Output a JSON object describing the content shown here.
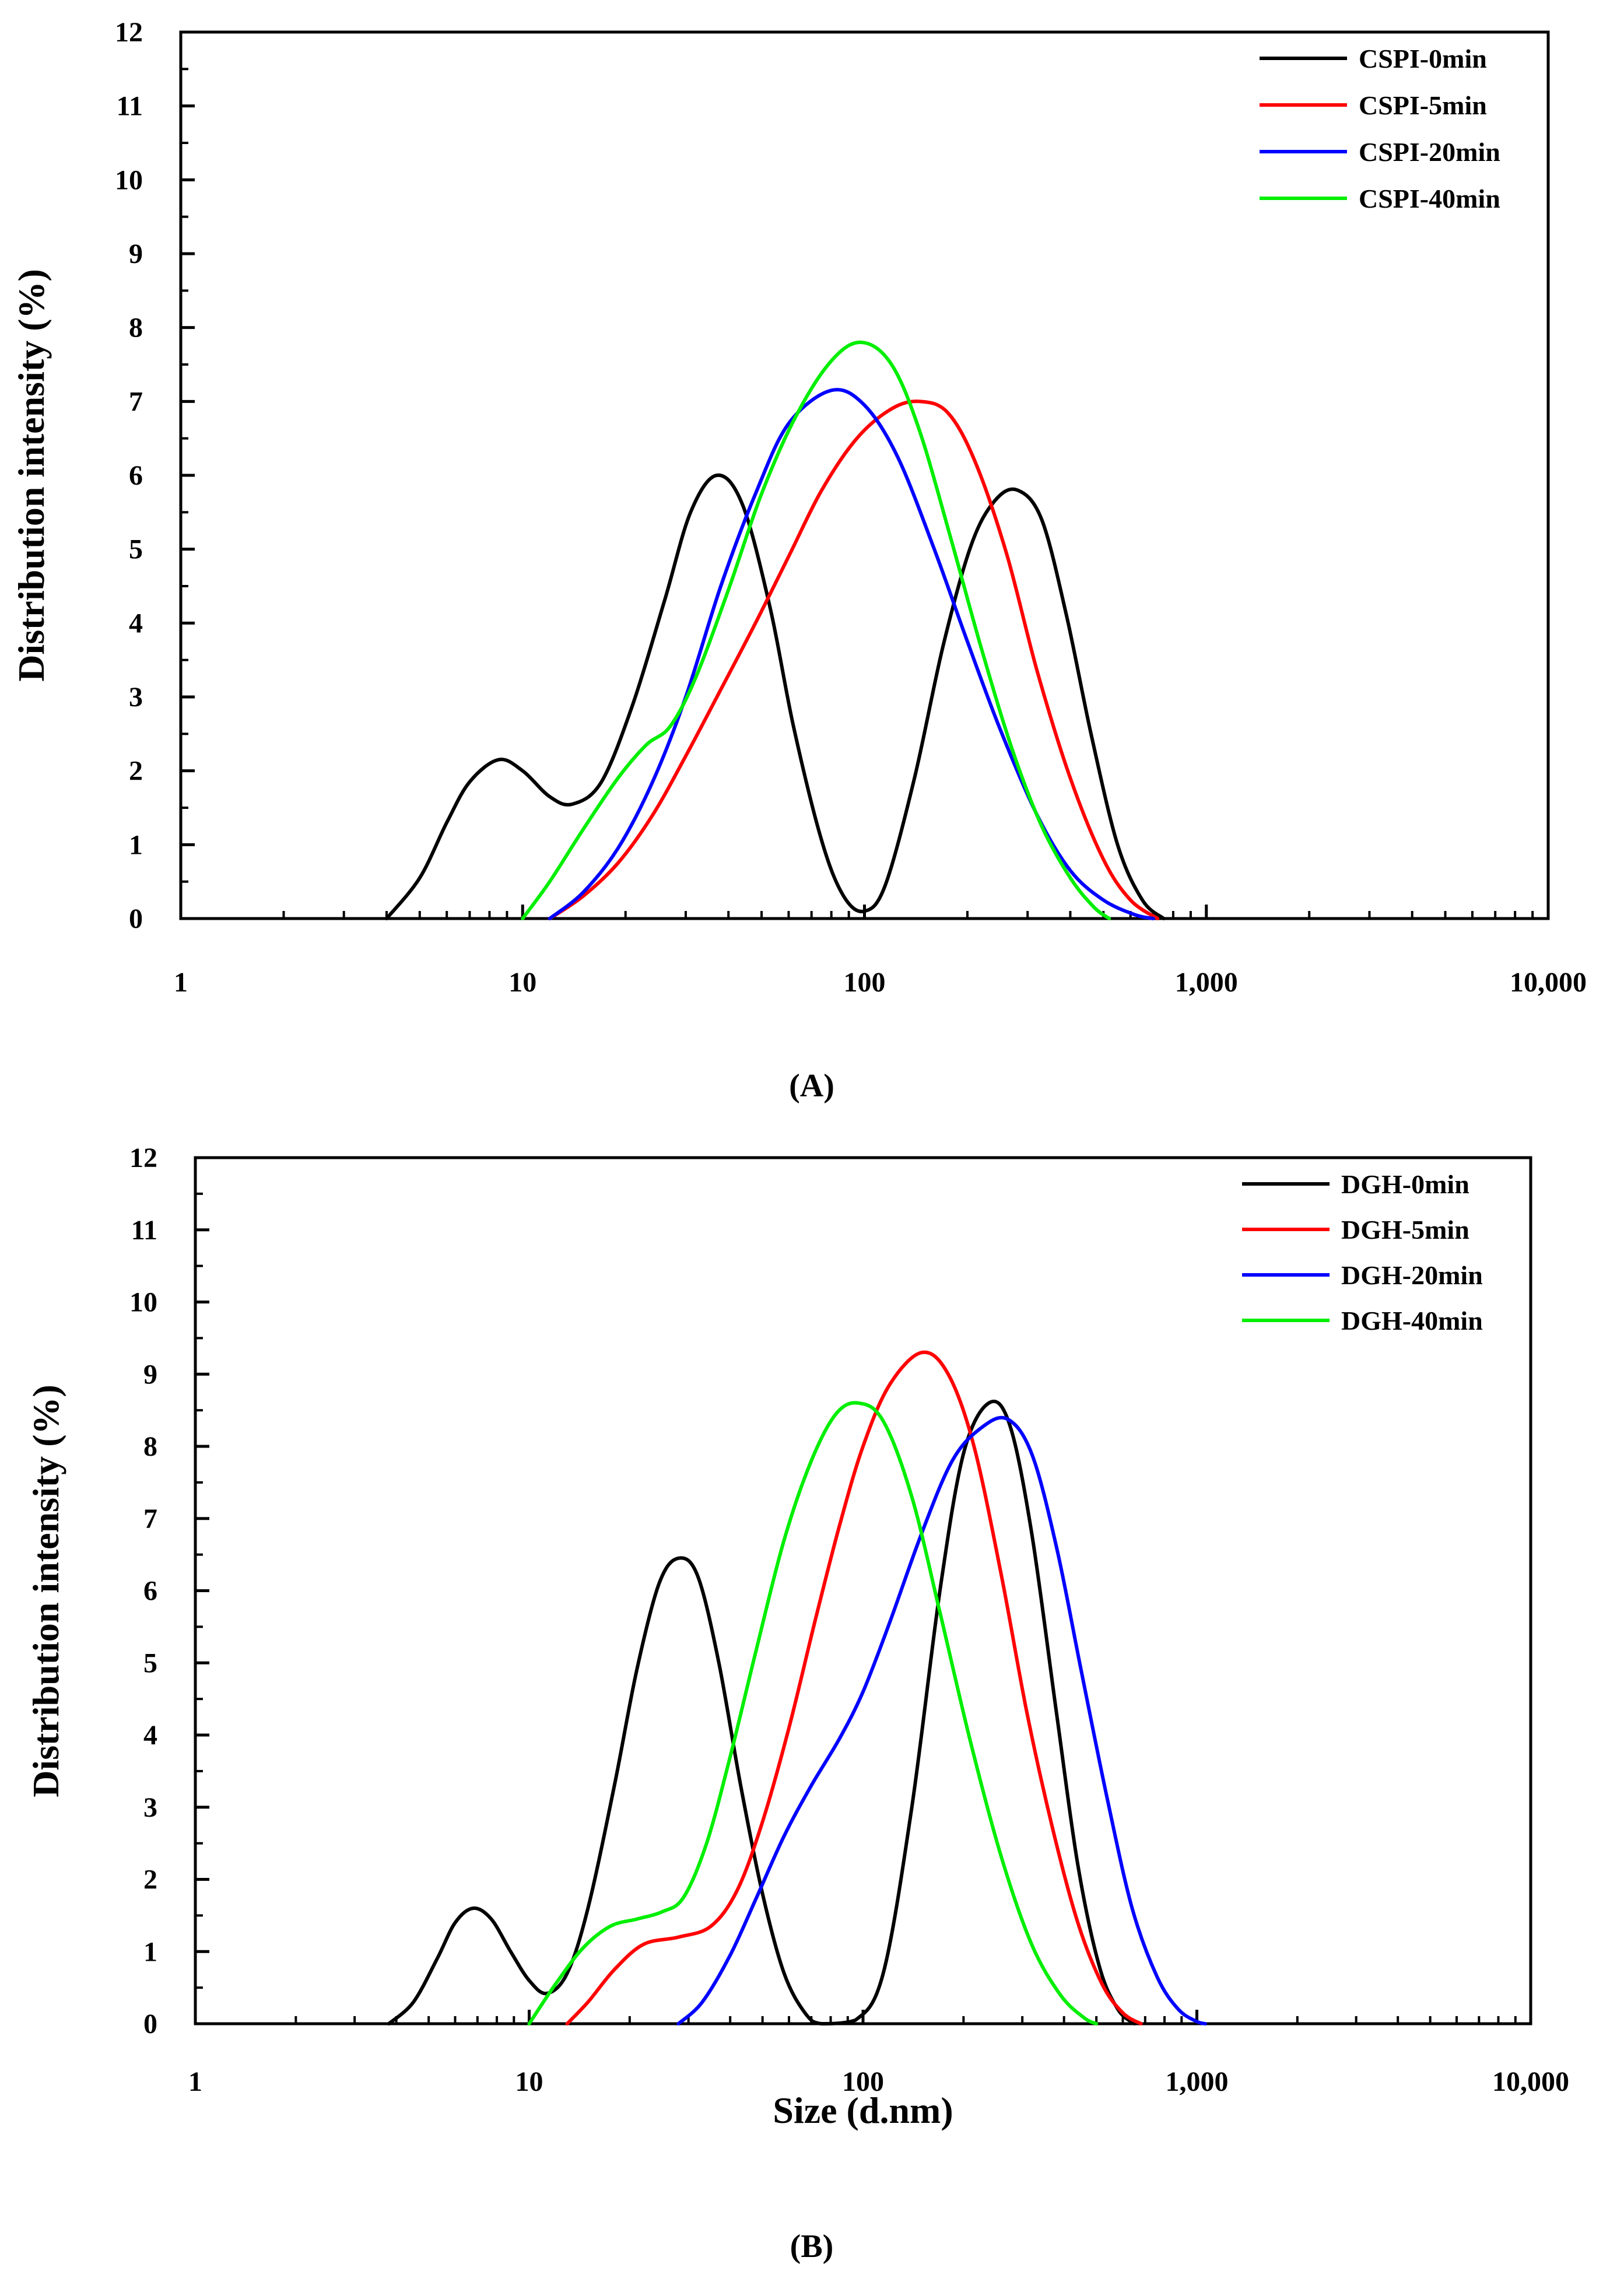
{
  "figure": {
    "panels": [
      {
        "label": "(A)",
        "legend_position": "top-right"
      },
      {
        "label": "(B)",
        "legend_position": "top-right"
      }
    ]
  },
  "chart_data": [
    {
      "type": "line",
      "panel": "A",
      "title": "",
      "xlabel": "",
      "ylabel": "Distribution intensity (%)",
      "xscale": "log",
      "xlim": [
        1,
        10000
      ],
      "ylim": [
        0,
        12
      ],
      "xticks": [
        1,
        10,
        100,
        1000,
        10000
      ],
      "xtick_labels": [
        "1",
        "10",
        "100",
        "1,000",
        "10,000"
      ],
      "yticks": [
        0,
        1,
        2,
        3,
        4,
        5,
        6,
        7,
        8,
        9,
        10,
        11,
        12
      ],
      "ytick_labels": [
        "0",
        "1",
        "2",
        "3",
        "4",
        "5",
        "6",
        "7",
        "8",
        "9",
        "10",
        "11",
        "12"
      ],
      "series": [
        {
          "name": "CSPI-0min",
          "color": "#000000",
          "points": [
            [
              4,
              0
            ],
            [
              5,
              0.55
            ],
            [
              6,
              1.3
            ],
            [
              7,
              1.85
            ],
            [
              8.5,
              2.15
            ],
            [
              10,
              2.0
            ],
            [
              12,
              1.65
            ],
            [
              14,
              1.55
            ],
            [
              17,
              1.85
            ],
            [
              21,
              2.9
            ],
            [
              26,
              4.3
            ],
            [
              31,
              5.5
            ],
            [
              37,
              6.0
            ],
            [
              44,
              5.6
            ],
            [
              53,
              4.2
            ],
            [
              62,
              2.6
            ],
            [
              75,
              1.05
            ],
            [
              87,
              0.3
            ],
            [
              100,
              0.1
            ],
            [
              115,
              0.45
            ],
            [
              140,
              1.9
            ],
            [
              170,
              3.7
            ],
            [
              205,
              5.05
            ],
            [
              240,
              5.65
            ],
            [
              280,
              5.8
            ],
            [
              330,
              5.4
            ],
            [
              390,
              4.1
            ],
            [
              460,
              2.5
            ],
            [
              550,
              1.0
            ],
            [
              650,
              0.25
            ],
            [
              750,
              0
            ]
          ]
        },
        {
          "name": "CSPI-5min",
          "color": "#ff0000",
          "points": [
            [
              12,
              0
            ],
            [
              15,
              0.3
            ],
            [
              19,
              0.75
            ],
            [
              24,
              1.4
            ],
            [
              30,
              2.2
            ],
            [
              38,
              3.1
            ],
            [
              48,
              4.0
            ],
            [
              60,
              4.9
            ],
            [
              75,
              5.8
            ],
            [
              95,
              6.5
            ],
            [
              120,
              6.9
            ],
            [
              145,
              7.0
            ],
            [
              175,
              6.85
            ],
            [
              210,
              6.2
            ],
            [
              260,
              4.95
            ],
            [
              320,
              3.35
            ],
            [
              400,
              1.9
            ],
            [
              500,
              0.8
            ],
            [
              600,
              0.25
            ],
            [
              720,
              0
            ]
          ]
        },
        {
          "name": "CSPI-20min",
          "color": "#0000ff",
          "points": [
            [
              12,
              0
            ],
            [
              15,
              0.35
            ],
            [
              19,
              0.95
            ],
            [
              24,
              1.85
            ],
            [
              30,
              3.0
            ],
            [
              38,
              4.5
            ],
            [
              48,
              5.75
            ],
            [
              60,
              6.7
            ],
            [
              80,
              7.15
            ],
            [
              100,
              6.95
            ],
            [
              125,
              6.25
            ],
            [
              160,
              5.0
            ],
            [
              200,
              3.75
            ],
            [
              250,
              2.55
            ],
            [
              320,
              1.4
            ],
            [
              400,
              0.65
            ],
            [
              500,
              0.25
            ],
            [
              620,
              0.05
            ],
            [
              700,
              0
            ]
          ]
        },
        {
          "name": "CSPI-40min",
          "color": "#00ee00",
          "points": [
            [
              10,
              0
            ],
            [
              12,
              0.5
            ],
            [
              15,
              1.2
            ],
            [
              19,
              1.9
            ],
            [
              23,
              2.35
            ],
            [
              27,
              2.6
            ],
            [
              32,
              3.25
            ],
            [
              40,
              4.45
            ],
            [
              50,
              5.75
            ],
            [
              63,
              6.8
            ],
            [
              80,
              7.55
            ],
            [
              98,
              7.8
            ],
            [
              120,
              7.5
            ],
            [
              145,
              6.6
            ],
            [
              180,
              5.1
            ],
            [
              220,
              3.65
            ],
            [
              270,
              2.3
            ],
            [
              330,
              1.25
            ],
            [
              400,
              0.55
            ],
            [
              470,
              0.15
            ],
            [
              520,
              0
            ]
          ]
        }
      ]
    },
    {
      "type": "line",
      "panel": "B",
      "title": "",
      "xlabel": "Size (d.nm)",
      "ylabel": "Distribution intensity (%)",
      "xscale": "log",
      "xlim": [
        1,
        10000
      ],
      "ylim": [
        0,
        12
      ],
      "xticks": [
        1,
        10,
        100,
        1000,
        10000
      ],
      "xtick_labels": [
        "1",
        "10",
        "100",
        "1,000",
        "10,000"
      ],
      "yticks": [
        0,
        1,
        2,
        3,
        4,
        5,
        6,
        7,
        8,
        9,
        10,
        11,
        12
      ],
      "ytick_labels": [
        "0",
        "1",
        "2",
        "3",
        "4",
        "5",
        "6",
        "7",
        "8",
        "9",
        "10",
        "11",
        "12"
      ],
      "series": [
        {
          "name": "DGH-0min",
          "color": "#000000",
          "points": [
            [
              3.8,
              0
            ],
            [
              4.5,
              0.3
            ],
            [
              5.3,
              0.9
            ],
            [
              6.0,
              1.4
            ],
            [
              6.8,
              1.6
            ],
            [
              7.7,
              1.45
            ],
            [
              8.8,
              1.0
            ],
            [
              10,
              0.6
            ],
            [
              11.3,
              0.42
            ],
            [
              13,
              0.7
            ],
            [
              15,
              1.6
            ],
            [
              18,
              3.3
            ],
            [
              21,
              4.9
            ],
            [
              24.5,
              6.1
            ],
            [
              28,
              6.45
            ],
            [
              32,
              6.2
            ],
            [
              37,
              5.0
            ],
            [
              43,
              3.3
            ],
            [
              50,
              1.8
            ],
            [
              58,
              0.7
            ],
            [
              67,
              0.15
            ],
            [
              75,
              0
            ],
            [
              95,
              0.05
            ],
            [
              115,
              0.7
            ],
            [
              140,
              3.0
            ],
            [
              170,
              6.0
            ],
            [
              200,
              7.9
            ],
            [
              238,
              8.6
            ],
            [
              275,
              8.3
            ],
            [
              320,
              6.8
            ],
            [
              380,
              4.3
            ],
            [
              440,
              2.2
            ],
            [
              510,
              0.8
            ],
            [
              580,
              0.2
            ],
            [
              650,
              0
            ]
          ]
        },
        {
          "name": "DGH-5min",
          "color": "#ff0000",
          "points": [
            [
              13,
              0
            ],
            [
              15,
              0.3
            ],
            [
              18,
              0.75
            ],
            [
              22,
              1.1
            ],
            [
              28,
              1.2
            ],
            [
              35,
              1.35
            ],
            [
              42,
              1.85
            ],
            [
              50,
              2.8
            ],
            [
              60,
              4.1
            ],
            [
              72,
              5.6
            ],
            [
              85,
              6.9
            ],
            [
              100,
              8.0
            ],
            [
              120,
              8.85
            ],
            [
              150,
              9.3
            ],
            [
              180,
              9.0
            ],
            [
              215,
              8.0
            ],
            [
              260,
              6.2
            ],
            [
              310,
              4.3
            ],
            [
              370,
              2.7
            ],
            [
              440,
              1.4
            ],
            [
              520,
              0.55
            ],
            [
              600,
              0.15
            ],
            [
              680,
              0
            ]
          ]
        },
        {
          "name": "DGH-20min",
          "color": "#0000ff",
          "points": [
            [
              28,
              0
            ],
            [
              33,
              0.3
            ],
            [
              40,
              0.95
            ],
            [
              48,
              1.75
            ],
            [
              58,
              2.6
            ],
            [
              70,
              3.3
            ],
            [
              85,
              3.95
            ],
            [
              100,
              4.6
            ],
            [
              120,
              5.55
            ],
            [
              150,
              6.8
            ],
            [
              185,
              7.8
            ],
            [
              225,
              8.25
            ],
            [
              270,
              8.38
            ],
            [
              320,
              7.9
            ],
            [
              380,
              6.6
            ],
            [
              450,
              4.9
            ],
            [
              540,
              3.1
            ],
            [
              640,
              1.6
            ],
            [
              760,
              0.65
            ],
            [
              880,
              0.2
            ],
            [
              1000,
              0.03
            ],
            [
              1060,
              0
            ]
          ]
        },
        {
          "name": "DGH-40min",
          "color": "#00ee00",
          "points": [
            [
              10,
              0
            ],
            [
              12,
              0.55
            ],
            [
              14.5,
              1.05
            ],
            [
              17.5,
              1.35
            ],
            [
              21,
              1.45
            ],
            [
              25,
              1.55
            ],
            [
              29,
              1.75
            ],
            [
              34,
              2.5
            ],
            [
              40,
              3.7
            ],
            [
              48,
              5.2
            ],
            [
              58,
              6.7
            ],
            [
              70,
              7.8
            ],
            [
              83,
              8.45
            ],
            [
              97,
              8.6
            ],
            [
              115,
              8.35
            ],
            [
              140,
              7.3
            ],
            [
              170,
              5.7
            ],
            [
              210,
              3.9
            ],
            [
              260,
              2.3
            ],
            [
              320,
              1.1
            ],
            [
              390,
              0.4
            ],
            [
              460,
              0.08
            ],
            [
              500,
              0
            ]
          ]
        }
      ]
    }
  ]
}
